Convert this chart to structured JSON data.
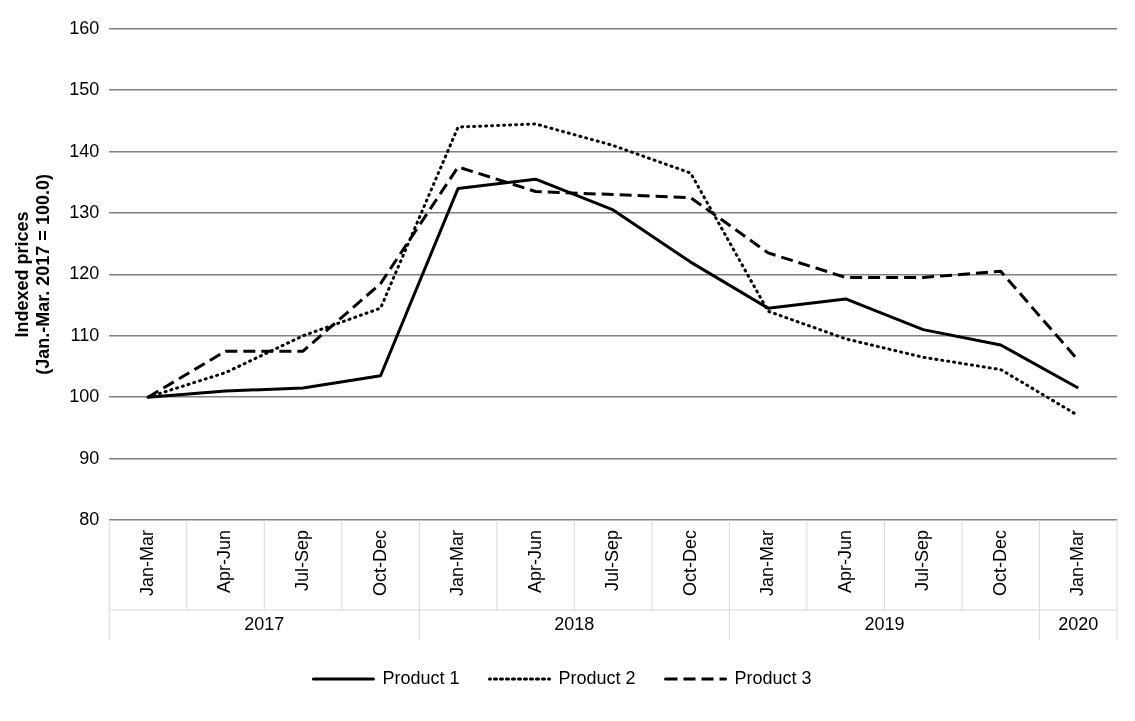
{
  "chart_data": {
    "type": "line",
    "ylabel": "Indexed prices\n(Jan.-Mar. 2017 = 100.0)",
    "categories": [
      "Jan-Mar",
      "Apr-Jun",
      "Jul-Sep",
      "Oct-Dec",
      "Jan-Mar",
      "Apr-Jun",
      "Jul-Sep",
      "Oct-Dec",
      "Jan-Mar",
      "Apr-Jun",
      "Jul-Sep",
      "Oct-Dec",
      "Jan-Mar"
    ],
    "annotations": [
      "2017",
      "2018",
      "2019",
      "2020"
    ],
    "series": [
      {
        "name": "Product 1",
        "color": "#000000",
        "line_style": "solid",
        "values": [
          100,
          101,
          101.5,
          103.5,
          134,
          135.5,
          130.5,
          122,
          114.5,
          116,
          111,
          108.5,
          101.5
        ]
      },
      {
        "name": "Product 2",
        "color": "#000000",
        "line_style": "dotted",
        "values": [
          100,
          104,
          110,
          114.5,
          144,
          144.5,
          141,
          136.5,
          114,
          109.5,
          106.5,
          104.5,
          97
        ]
      },
      {
        "name": "Product 3",
        "color": "#000000",
        "line_style": "dashed",
        "values": [
          100,
          107.5,
          107.5,
          118.5,
          137.5,
          133.5,
          133,
          132.5,
          123.5,
          119.5,
          119.5,
          120.5,
          106
        ]
      }
    ],
    "ylim": [
      80,
      160
    ],
    "yticks": [
      80,
      90,
      100,
      110,
      120,
      130,
      140,
      150,
      160
    ],
    "grid": "y",
    "legend": "bottom",
    "marker": "none"
  }
}
